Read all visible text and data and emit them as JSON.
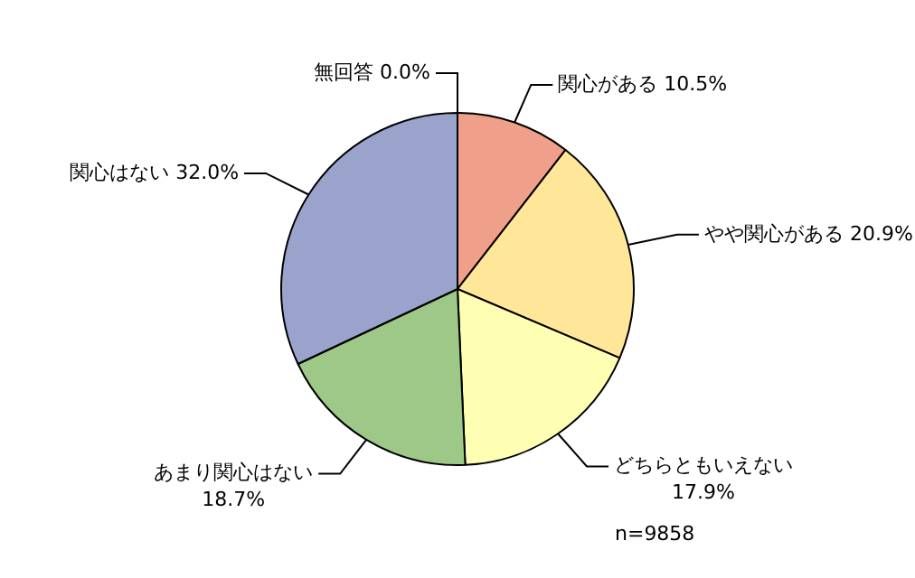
{
  "chart_data": {
    "type": "pie",
    "categories": [
      "関心がある",
      "やや関心がある",
      "どちらともいえない",
      "あまり関心はない",
      "関心はない",
      "無回答"
    ],
    "values": [
      10.5,
      20.9,
      17.9,
      18.7,
      32.0,
      0.0
    ],
    "value_labels": [
      "10.5%",
      "20.9%",
      "17.9%",
      "18.7%",
      "32.0%",
      "0.0%"
    ],
    "colors": [
      "#f0a08a",
      "#ffe699",
      "#ffffb3",
      "#9dc887",
      "#9aa3cc",
      "#ffffff"
    ],
    "annotations": [
      "n=9858"
    ],
    "legend": false
  }
}
